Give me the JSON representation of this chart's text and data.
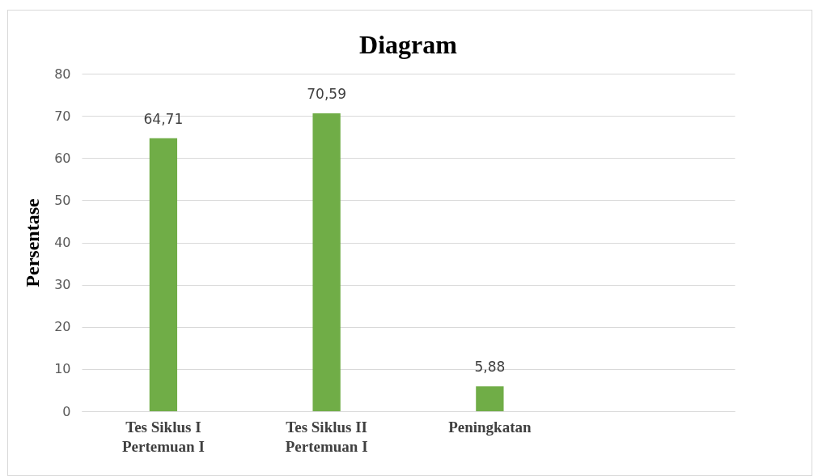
{
  "chart_data": {
    "type": "bar",
    "title": "Diagram",
    "ylabel": "Persentase",
    "categories": [
      "Tes Siklus I Pertemuan I",
      "Tes Siklus II Pertemuan I",
      "Peningkatan",
      null
    ],
    "values": [
      64.71,
      70.59,
      5.88,
      null
    ],
    "value_labels": [
      "64,71",
      "70,59",
      "5,88",
      null
    ],
    "color": "#70ad47",
    "ylim": [
      0,
      80
    ],
    "yticks": [
      0,
      10,
      20,
      30,
      40,
      50,
      60,
      70,
      80
    ],
    "grid": "y"
  }
}
